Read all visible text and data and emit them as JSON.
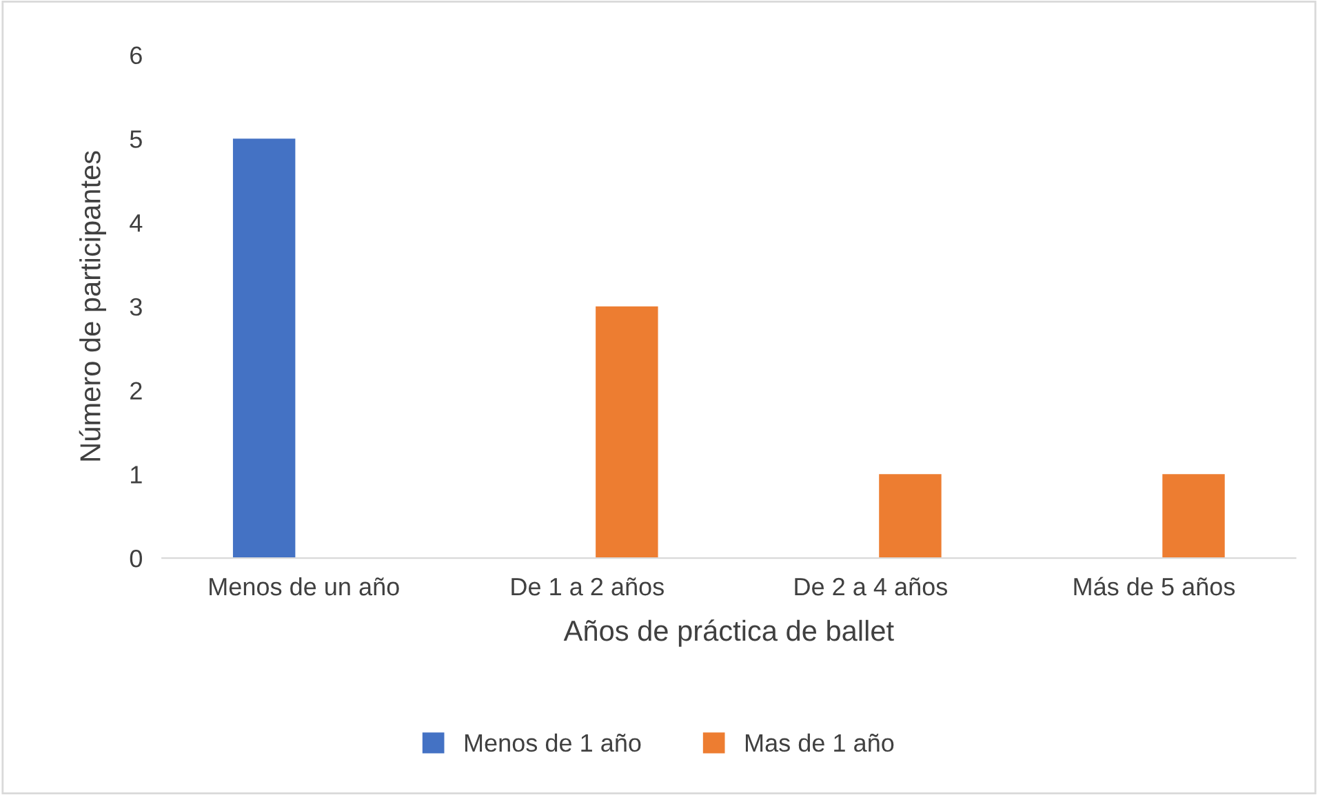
{
  "chart_data": {
    "type": "bar",
    "xlabel": "Años de práctica de ballet",
    "ylabel": "Número de participantes",
    "categories": [
      "Menos de un año",
      "De 1 a 2 años",
      "De 2 a 4 años",
      "Más de 5 años"
    ],
    "series": [
      {
        "name": "Menos de 1 año",
        "color": "#4472c4",
        "values": [
          5,
          null,
          null,
          null
        ]
      },
      {
        "name": "Mas de 1 año",
        "color": "#ed7d31",
        "values": [
          null,
          3,
          1,
          1
        ]
      }
    ],
    "ylim": [
      0,
      6
    ],
    "yticks": [
      0,
      1,
      2,
      3,
      4,
      5,
      6
    ],
    "grid": false,
    "legend": "bottom"
  }
}
